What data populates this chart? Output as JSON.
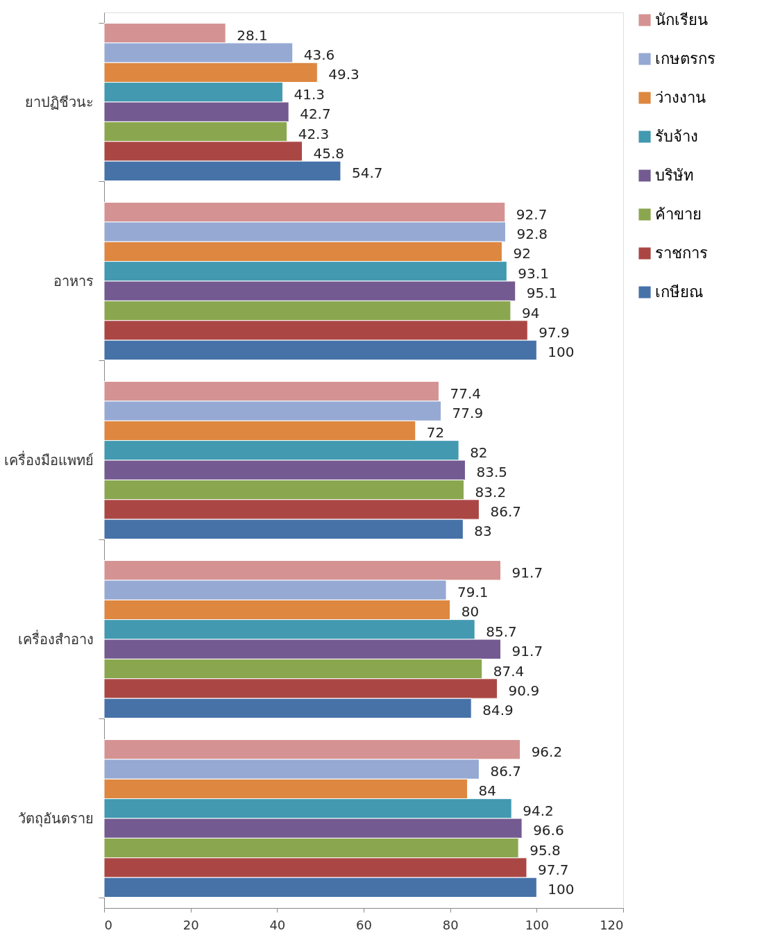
{
  "chart_data": {
    "type": "bar",
    "orientation": "horizontal",
    "categories": [
      "ยาปฏิชีวนะ",
      "อาหาร",
      "เครื่องมือแพทย์",
      "เครื่องสำอาง",
      "วัตถุอันตราย"
    ],
    "series": [
      {
        "name": "นักเรียน",
        "color": "#d49392",
        "values": [
          28.1,
          92.7,
          77.4,
          91.7,
          96.2
        ]
      },
      {
        "name": "เกษตรกร",
        "color": "#95a9d3",
        "values": [
          43.6,
          92.8,
          77.9,
          79.1,
          86.7
        ]
      },
      {
        "name": "ว่างงาน",
        "color": "#dd8741",
        "values": [
          49.3,
          92,
          72,
          80,
          84
        ]
      },
      {
        "name": "รับจ้าง",
        "color": "#4299b0",
        "values": [
          41.3,
          93.1,
          82,
          85.7,
          94.2
        ]
      },
      {
        "name": "บริษัท",
        "color": "#735a90",
        "values": [
          42.7,
          95.1,
          83.5,
          91.7,
          96.6
        ]
      },
      {
        "name": "ค้าขาย",
        "color": "#8aa74f",
        "values": [
          42.3,
          94,
          83.2,
          87.4,
          95.8
        ]
      },
      {
        "name": "ราชการ",
        "color": "#aa4744",
        "values": [
          45.8,
          97.9,
          86.7,
          90.9,
          97.7
        ]
      },
      {
        "name": "เกษียณ",
        "color": "#4672a8",
        "values": [
          54.7,
          100,
          83,
          84.9,
          100
        ]
      }
    ],
    "xlim": [
      0,
      120
    ],
    "xticks": [
      0,
      20,
      40,
      60,
      80,
      100,
      120
    ],
    "grid": false,
    "legend": "right",
    "data_labels": true
  }
}
